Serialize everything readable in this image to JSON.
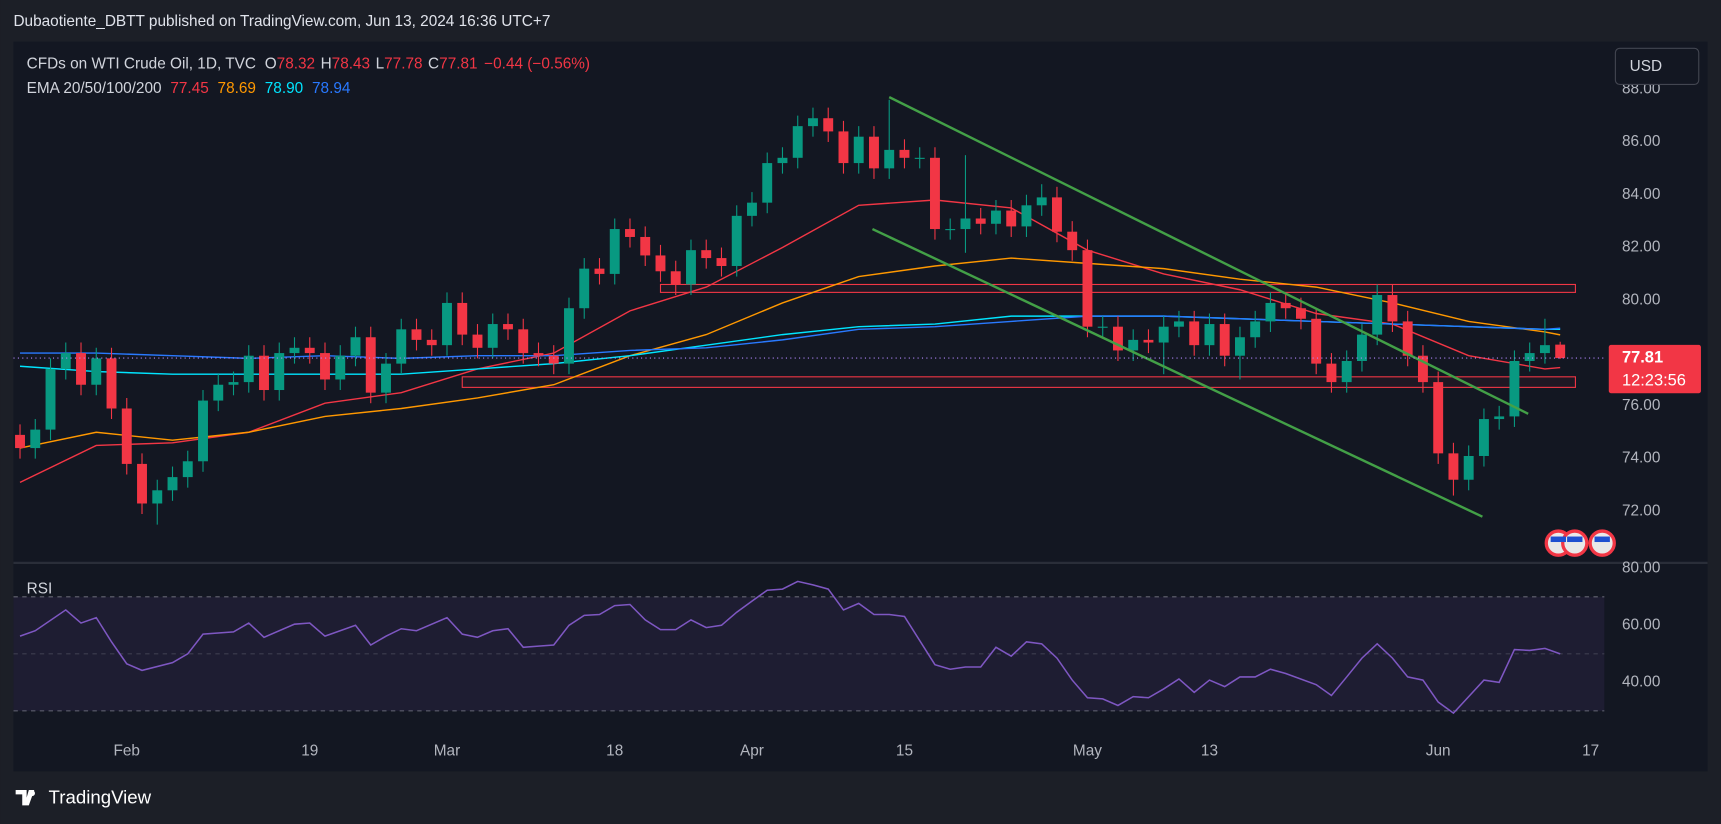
{
  "header": {
    "publisher": "Dubaotiente_DBTT published on TradingView.com, Jun 13, 2024 16:36 UTC+7"
  },
  "footer": {
    "brand": "TradingView"
  },
  "chart_data": [
    {
      "type": "candlestick",
      "title": "CFDs on WTI Crude Oil, 1D, TVC",
      "ohlc_legend": [
        {
          "label": "O",
          "value": "78.32"
        },
        {
          "label": "H",
          "value": "78.43"
        },
        {
          "label": "L",
          "value": "77.78"
        },
        {
          "label": "C",
          "value": "77.81"
        }
      ],
      "change": "−0.44 (−0.56%)",
      "indicator": "EMA 20/50/100/200",
      "currency": "USD",
      "countdown": "12:23:56",
      "up_color": "#089981",
      "down_color": "#f23645",
      "open": [
        74.9,
        74.4,
        75.1,
        77.4,
        78.0,
        76.8,
        77.8,
        75.9,
        73.8,
        72.3,
        72.8,
        73.3,
        73.9,
        76.2,
        76.8,
        76.9,
        77.9,
        76.6,
        78.0,
        78.2,
        78.0,
        77.0,
        77.9,
        78.6,
        76.5,
        77.6,
        78.9,
        78.5,
        78.3,
        79.9,
        78.7,
        78.2,
        79.1,
        78.9,
        78.0,
        77.9,
        77.6,
        79.7,
        81.2,
        81.0,
        82.7,
        82.4,
        81.7,
        81.1,
        80.6,
        81.9,
        81.6,
        81.3,
        83.2,
        83.7,
        85.2,
        85.4,
        86.6,
        86.9,
        86.4,
        85.2,
        86.2,
        85.0,
        85.7,
        85.4,
        85.4,
        82.7,
        82.7,
        83.1,
        82.9,
        83.4,
        82.8,
        83.6,
        83.9,
        82.6,
        81.9,
        79.0,
        79.0,
        78.1,
        78.5,
        78.4,
        79.0,
        79.2,
        78.3,
        79.1,
        77.9,
        78.6,
        79.2,
        79.9,
        79.7,
        79.3,
        77.6,
        76.9,
        77.7,
        78.7,
        80.2,
        79.2,
        77.9,
        76.9,
        74.2,
        73.2,
        74.1,
        75.5,
        75.6,
        77.7,
        78.0,
        78.32
      ],
      "high": [
        75.3,
        75.5,
        77.8,
        78.4,
        78.4,
        78.2,
        78.2,
        76.3,
        74.2,
        73.2,
        73.7,
        74.3,
        76.6,
        77.2,
        77.3,
        78.3,
        78.3,
        78.4,
        78.6,
        78.6,
        78.4,
        78.3,
        79.0,
        79.0,
        78.0,
        79.3,
        79.3,
        78.9,
        80.3,
        80.3,
        79.1,
        79.5,
        79.5,
        79.3,
        78.4,
        78.3,
        80.1,
        81.6,
        81.6,
        83.1,
        83.1,
        82.8,
        82.1,
        81.5,
        82.3,
        82.3,
        82.0,
        83.6,
        84.1,
        85.6,
        85.8,
        87.0,
        87.3,
        87.3,
        86.8,
        86.6,
        86.6,
        87.6,
        86.1,
        85.8,
        85.8,
        83.1,
        85.5,
        83.5,
        83.8,
        83.8,
        84.0,
        84.4,
        84.3,
        83.0,
        82.3,
        79.4,
        79.4,
        78.9,
        78.9,
        79.4,
        79.6,
        79.6,
        79.5,
        79.5,
        79.0,
        79.6,
        80.3,
        80.3,
        80.1,
        79.7,
        78.0,
        78.1,
        79.1,
        80.6,
        80.6,
        79.6,
        78.3,
        77.3,
        74.6,
        74.5,
        75.9,
        76.0,
        78.1,
        78.4,
        79.3,
        78.43
      ],
      "low": [
        74.0,
        74.0,
        74.7,
        77.0,
        76.4,
        76.4,
        75.5,
        73.4,
        71.9,
        71.5,
        72.4,
        72.9,
        73.5,
        75.8,
        76.4,
        76.5,
        76.2,
        76.2,
        77.6,
        77.6,
        76.6,
        76.6,
        77.5,
        76.1,
        76.1,
        77.2,
        78.1,
        77.9,
        77.9,
        78.3,
        77.8,
        77.8,
        78.5,
        77.6,
        77.5,
        77.2,
        77.2,
        79.3,
        80.6,
        80.6,
        82.0,
        81.3,
        80.7,
        80.2,
        80.2,
        81.2,
        80.9,
        80.9,
        82.8,
        83.3,
        84.8,
        85.0,
        86.2,
        86.0,
        84.8,
        84.8,
        84.6,
        84.6,
        85.0,
        85.0,
        82.3,
        82.3,
        81.8,
        82.5,
        82.5,
        82.4,
        82.4,
        83.2,
        82.2,
        81.5,
        78.6,
        78.6,
        77.7,
        77.7,
        78.0,
        77.2,
        78.6,
        77.9,
        77.9,
        77.5,
        77.0,
        78.2,
        78.8,
        79.3,
        78.9,
        77.2,
        76.5,
        76.5,
        77.3,
        78.3,
        78.8,
        77.5,
        76.5,
        73.8,
        72.6,
        72.8,
        73.7,
        75.1,
        75.2,
        77.3,
        77.6,
        77.78
      ],
      "close": [
        74.4,
        75.1,
        77.4,
        78.0,
        76.8,
        77.8,
        75.9,
        73.8,
        72.3,
        72.8,
        73.3,
        73.9,
        76.2,
        76.8,
        76.9,
        77.9,
        76.6,
        78.0,
        78.2,
        78.0,
        77.0,
        77.9,
        78.6,
        76.5,
        77.6,
        78.9,
        78.5,
        78.3,
        79.9,
        78.7,
        78.2,
        79.1,
        78.9,
        78.0,
        77.9,
        77.6,
        79.7,
        81.2,
        81.0,
        82.7,
        82.4,
        81.7,
        81.1,
        80.6,
        81.9,
        81.6,
        81.3,
        83.2,
        83.7,
        85.2,
        85.4,
        86.6,
        86.9,
        86.4,
        85.2,
        86.2,
        85.0,
        85.7,
        85.4,
        85.4,
        82.7,
        82.7,
        83.1,
        82.9,
        83.4,
        82.8,
        83.6,
        83.9,
        82.6,
        81.9,
        79.0,
        79.0,
        78.1,
        78.5,
        78.4,
        79.0,
        79.2,
        78.3,
        79.1,
        77.9,
        78.6,
        79.2,
        79.9,
        79.7,
        79.3,
        77.6,
        76.9,
        77.7,
        78.7,
        80.2,
        79.2,
        77.9,
        76.9,
        74.2,
        73.2,
        74.1,
        75.5,
        75.6,
        77.7,
        78.0,
        78.3,
        77.81
      ],
      "series": [
        {
          "label": "77.45",
          "color": "#f23645",
          "x": [
            0,
            5,
            10,
            15,
            20,
            25,
            30,
            35,
            40,
            45,
            50,
            55,
            60,
            65,
            70,
            75,
            80,
            85,
            90,
            95,
            100,
            101
          ],
          "values": [
            73.1,
            74.5,
            74.6,
            75.0,
            76.1,
            76.5,
            77.4,
            78.0,
            79.6,
            80.5,
            82.0,
            83.6,
            83.8,
            83.5,
            81.9,
            81.0,
            80.4,
            79.5,
            79.1,
            77.9,
            77.4,
            77.45
          ]
        },
        {
          "label": "78.69",
          "color": "#ff9800",
          "x": [
            0,
            5,
            10,
            15,
            20,
            25,
            30,
            35,
            40,
            45,
            50,
            55,
            60,
            65,
            70,
            75,
            80,
            85,
            90,
            95,
            100,
            101
          ],
          "values": [
            74.4,
            75.0,
            74.7,
            75.0,
            75.6,
            75.9,
            76.3,
            76.8,
            77.9,
            78.7,
            79.9,
            80.9,
            81.3,
            81.6,
            81.4,
            81.2,
            80.8,
            80.5,
            79.9,
            79.2,
            78.8,
            78.69
          ]
        },
        {
          "label": "78.90",
          "color": "#00e5ff",
          "x": [
            0,
            5,
            10,
            15,
            20,
            25,
            30,
            35,
            40,
            45,
            50,
            55,
            60,
            65,
            70,
            75,
            80,
            85,
            90,
            95,
            100,
            101
          ],
          "values": [
            77.5,
            77.3,
            77.2,
            77.2,
            77.2,
            77.2,
            77.4,
            77.6,
            77.9,
            78.3,
            78.7,
            79.0,
            79.1,
            79.4,
            79.4,
            79.4,
            79.3,
            79.2,
            79.1,
            79.0,
            78.9,
            78.9
          ]
        },
        {
          "label": "78.94",
          "color": "#2979ff",
          "x": [
            0,
            5,
            10,
            15,
            20,
            25,
            30,
            35,
            40,
            45,
            50,
            55,
            60,
            65,
            70,
            75,
            80,
            85,
            90,
            95,
            100,
            101
          ],
          "values": [
            78.0,
            78.0,
            77.9,
            77.8,
            77.9,
            77.8,
            77.9,
            77.9,
            78.1,
            78.2,
            78.5,
            78.9,
            79.0,
            79.2,
            79.4,
            79.4,
            79.3,
            79.2,
            79.1,
            79.0,
            78.9,
            78.94
          ]
        }
      ],
      "trendline_color": "#43a047",
      "trendlines": [
        {
          "x": [
            57,
            98.9
          ],
          "values": [
            87.7,
            75.7
          ]
        },
        {
          "x": [
            55.9,
            95.9
          ],
          "values": [
            82.7,
            71.8
          ]
        }
      ],
      "zone_color": "#f23645",
      "zones": [
        {
          "x": [
            42,
            102
          ],
          "values": [
            80.6,
            80.3
          ]
        },
        {
          "x": [
            29,
            102
          ],
          "values": [
            77.1,
            76.7
          ]
        }
      ],
      "xlim": [
        -0.43,
        103.9
      ],
      "ylim": [
        70.05,
        89.8
      ],
      "yticks": [
        {
          "value": 72,
          "label": "72.00"
        },
        {
          "value": 74,
          "label": "74.00"
        },
        {
          "value": 76,
          "label": "76.00"
        },
        {
          "value": 78,
          "label": "78.00"
        },
        {
          "value": 80,
          "label": "80.00"
        },
        {
          "value": 82,
          "label": "82.00"
        },
        {
          "value": 84,
          "label": "84.00"
        },
        {
          "value": 86,
          "label": "86.00"
        },
        {
          "value": 88,
          "label": "88.00"
        }
      ]
    },
    {
      "type": "line",
      "title": "RSI",
      "color": "#7e57c2",
      "x": [
        0,
        1,
        3,
        4,
        5,
        6,
        7,
        8,
        10,
        11,
        12,
        14,
        15,
        16,
        18,
        19,
        20,
        22,
        23,
        24,
        25,
        26,
        28,
        29,
        30,
        31,
        32,
        33,
        34,
        35,
        36,
        37,
        38,
        39,
        40,
        41,
        42,
        43,
        44,
        45,
        46,
        47,
        48,
        49,
        50,
        51,
        52,
        53,
        54,
        55,
        56,
        57,
        58,
        60,
        61,
        62,
        63,
        64,
        65,
        66,
        67,
        68,
        69,
        70,
        71,
        72,
        73,
        74,
        75,
        76,
        77,
        78,
        79,
        80,
        81,
        82,
        83,
        85,
        86,
        87,
        88,
        89,
        90,
        91,
        92,
        93,
        94,
        95,
        96,
        97,
        98,
        99,
        100,
        101
      ],
      "values": [
        56.2,
        58.1,
        65.4,
        60.8,
        62.7,
        54.2,
        46.5,
        44.2,
        46.9,
        50.0,
        56.9,
        57.7,
        60.8,
        55.8,
        60.4,
        60.8,
        56.2,
        60.0,
        53.1,
        56.2,
        58.8,
        58.1,
        62.7,
        56.9,
        55.8,
        58.1,
        58.8,
        52.3,
        52.7,
        53.1,
        60.0,
        63.5,
        63.8,
        66.9,
        67.3,
        61.9,
        58.5,
        58.5,
        61.9,
        59.2,
        60.0,
        64.6,
        68.5,
        72.3,
        72.7,
        75.4,
        74.2,
        72.7,
        65.4,
        67.7,
        63.8,
        63.8,
        63.1,
        46.2,
        44.6,
        45.4,
        45.4,
        52.3,
        49.2,
        54.2,
        53.5,
        48.5,
        40.8,
        34.6,
        34.2,
        31.9,
        35.0,
        34.6,
        37.7,
        41.2,
        36.5,
        40.8,
        38.5,
        41.9,
        41.9,
        44.6,
        43.1,
        39.2,
        35.4,
        41.9,
        48.5,
        53.5,
        48.5,
        41.9,
        40.8,
        33.1,
        29.2,
        35.0,
        40.8,
        40.0,
        51.5,
        51.2,
        51.9,
        50.0
      ],
      "levels": [
        70,
        50,
        30
      ],
      "xlim": [
        -0.43,
        103.9
      ],
      "ylim": [
        8.8,
        81.9
      ],
      "yticks": [
        {
          "value": 40,
          "label": "40.00"
        },
        {
          "value": 60,
          "label": "60.00"
        },
        {
          "value": 80,
          "label": "80.00"
        }
      ],
      "xticks": [
        {
          "value": 7,
          "label": "Feb"
        },
        {
          "value": 19,
          "label": "19"
        },
        {
          "value": 28,
          "label": "Mar"
        },
        {
          "value": 39,
          "label": "18"
        },
        {
          "value": 48,
          "label": "Apr"
        },
        {
          "value": 58,
          "label": "15"
        },
        {
          "value": 70,
          "label": "May"
        },
        {
          "value": 78,
          "label": "13"
        },
        {
          "value": 93,
          "label": "Jun"
        },
        {
          "value": 103,
          "label": "17"
        }
      ]
    }
  ]
}
